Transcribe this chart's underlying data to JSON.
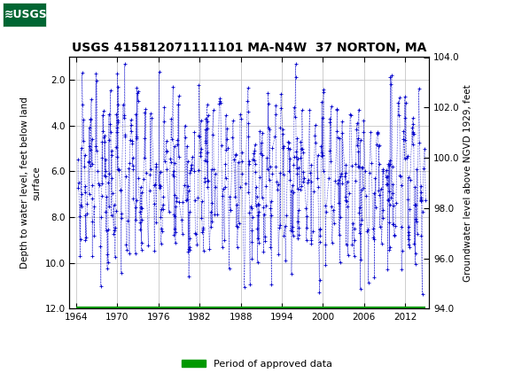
{
  "title": "USGS 415812071111101 MA-N4W  37 NORTON, MA",
  "ylabel_left": "Depth to water level, feet below land\nsurface",
  "ylabel_right": "Groundwater level above NGVD 1929, feet",
  "ylim_left": [
    12.0,
    1.0
  ],
  "ylim_right": [
    94.0,
    104.0
  ],
  "xlim": [
    1963.0,
    2015.5
  ],
  "yticks_left": [
    2.0,
    4.0,
    6.0,
    8.0,
    10.0,
    12.0
  ],
  "yticks_right": [
    94.0,
    96.0,
    98.0,
    100.0,
    102.0,
    104.0
  ],
  "xticks": [
    1964,
    1970,
    1976,
    1982,
    1988,
    1994,
    2000,
    2006,
    2012
  ],
  "data_color": "#0000cc",
  "legend_color": "#009900",
  "legend_label": "Period of approved data",
  "header_bg_color": "#006633",
  "header_text_color": "#ffffff",
  "plot_bg_color": "#ffffff",
  "grid_color": "#bbbbbb",
  "title_fontsize": 10,
  "axis_fontsize": 7.5,
  "tick_fontsize": 7.5,
  "seed": 42,
  "n_points": 700,
  "x_start": 1964.0,
  "x_end": 2015.0,
  "depth_mean": 6.2,
  "depth_min": 1.3,
  "depth_max": 11.8
}
